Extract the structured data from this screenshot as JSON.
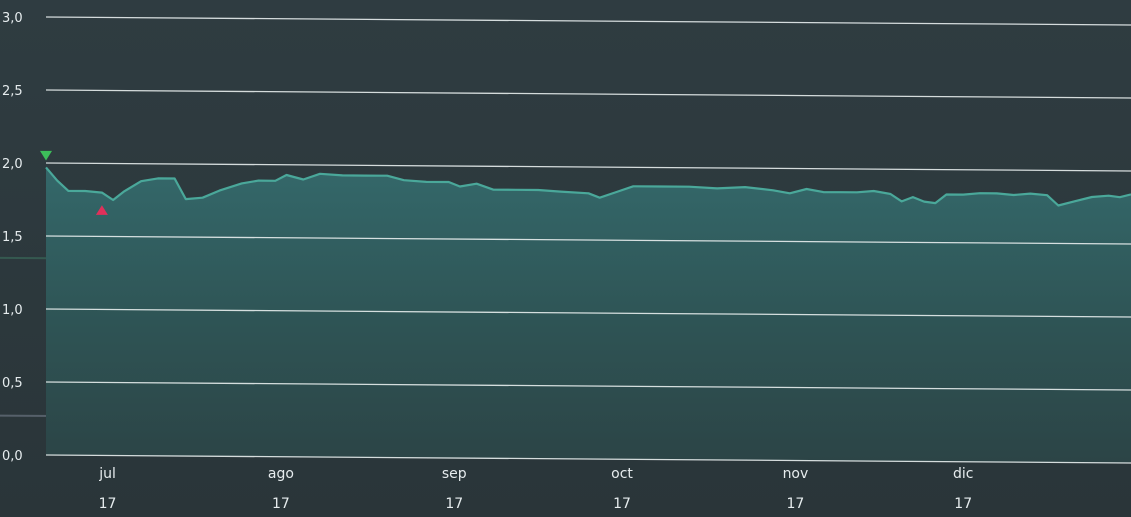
{
  "chart_data": {
    "type": "area",
    "title": "",
    "xlabel": "",
    "ylabel": "",
    "ylim": [
      0,
      3
    ],
    "grid": true,
    "legend": "none",
    "y_ticks": [
      "0,0",
      "0,5",
      "1,0",
      "1,5",
      "2,0",
      "2,5",
      "3,0"
    ],
    "x_ticks": [
      {
        "month": "jul",
        "year": "17",
        "date": "2017-07-01"
      },
      {
        "month": "ago",
        "year": "17",
        "date": "2017-08-01"
      },
      {
        "month": "sep",
        "year": "17",
        "date": "2017-09-01"
      },
      {
        "month": "oct",
        "year": "17",
        "date": "2017-10-01"
      },
      {
        "month": "nov",
        "year": "17",
        "date": "2017-11-01"
      },
      {
        "month": "dic",
        "year": "17",
        "date": "2017-12-01"
      }
    ],
    "x_range": [
      "2017-06-20",
      "2017-12-31"
    ],
    "series": [
      {
        "color": "#4aa89a",
        "points": [
          [
            "2017-06-20",
            1.97
          ],
          [
            "2017-06-22",
            1.88
          ],
          [
            "2017-06-24",
            1.81
          ],
          [
            "2017-06-27",
            1.81
          ],
          [
            "2017-06-30",
            1.8
          ],
          [
            "2017-07-02",
            1.75
          ],
          [
            "2017-07-04",
            1.81
          ],
          [
            "2017-07-07",
            1.88
          ],
          [
            "2017-07-10",
            1.9
          ],
          [
            "2017-07-13",
            1.9
          ],
          [
            "2017-07-15",
            1.76
          ],
          [
            "2017-07-18",
            1.77
          ],
          [
            "2017-07-21",
            1.82
          ],
          [
            "2017-07-25",
            1.87
          ],
          [
            "2017-07-28",
            1.89
          ],
          [
            "2017-07-31",
            1.89
          ],
          [
            "2017-08-02",
            1.93
          ],
          [
            "2017-08-05",
            1.9
          ],
          [
            "2017-08-08",
            1.94
          ],
          [
            "2017-08-12",
            1.93
          ],
          [
            "2017-08-16",
            1.93
          ],
          [
            "2017-08-20",
            1.93
          ],
          [
            "2017-08-23",
            1.9
          ],
          [
            "2017-08-27",
            1.89
          ],
          [
            "2017-08-31",
            1.89
          ],
          [
            "2017-09-02",
            1.86
          ],
          [
            "2017-09-05",
            1.88
          ],
          [
            "2017-09-08",
            1.84
          ],
          [
            "2017-09-12",
            1.84
          ],
          [
            "2017-09-16",
            1.84
          ],
          [
            "2017-09-20",
            1.83
          ],
          [
            "2017-09-25",
            1.82
          ],
          [
            "2017-09-27",
            1.79
          ],
          [
            "2017-09-30",
            1.83
          ],
          [
            "2017-10-03",
            1.87
          ],
          [
            "2017-10-08",
            1.87
          ],
          [
            "2017-10-13",
            1.87
          ],
          [
            "2017-10-18",
            1.86
          ],
          [
            "2017-10-23",
            1.87
          ],
          [
            "2017-10-28",
            1.85
          ],
          [
            "2017-10-31",
            1.83
          ],
          [
            "2017-11-03",
            1.86
          ],
          [
            "2017-11-06",
            1.84
          ],
          [
            "2017-11-09",
            1.84
          ],
          [
            "2017-11-12",
            1.84
          ],
          [
            "2017-11-15",
            1.85
          ],
          [
            "2017-11-18",
            1.83
          ],
          [
            "2017-11-20",
            1.78
          ],
          [
            "2017-11-22",
            1.81
          ],
          [
            "2017-11-24",
            1.78
          ],
          [
            "2017-11-26",
            1.77
          ],
          [
            "2017-11-28",
            1.83
          ],
          [
            "2017-12-01",
            1.83
          ],
          [
            "2017-12-04",
            1.84
          ],
          [
            "2017-12-07",
            1.84
          ],
          [
            "2017-12-10",
            1.83
          ],
          [
            "2017-12-13",
            1.84
          ],
          [
            "2017-12-16",
            1.83
          ],
          [
            "2017-12-18",
            1.76
          ],
          [
            "2017-12-21",
            1.79
          ],
          [
            "2017-12-24",
            1.82
          ],
          [
            "2017-12-27",
            1.83
          ],
          [
            "2017-12-29",
            1.82
          ],
          [
            "2017-12-31",
            1.84
          ]
        ]
      }
    ],
    "markers": [
      {
        "type": "triangle-down",
        "color": "#3dbf5a",
        "date": "2017-06-20",
        "value": 2.05
      },
      {
        "type": "triangle-up",
        "color": "#e0305a",
        "date": "2017-06-30",
        "value": 1.68
      }
    ],
    "colors": {
      "plot_background": "#2d3a3f",
      "area_fill": "#305f5e",
      "line": "#4aa89a",
      "gridline": "#e8eeee",
      "band": "#3e4a4c",
      "tick_text": "#e6ecee"
    },
    "bands": [
      {
        "value": 1.35,
        "color": "#355950"
      },
      {
        "value": 0.27,
        "color": "#56606a"
      }
    ]
  }
}
